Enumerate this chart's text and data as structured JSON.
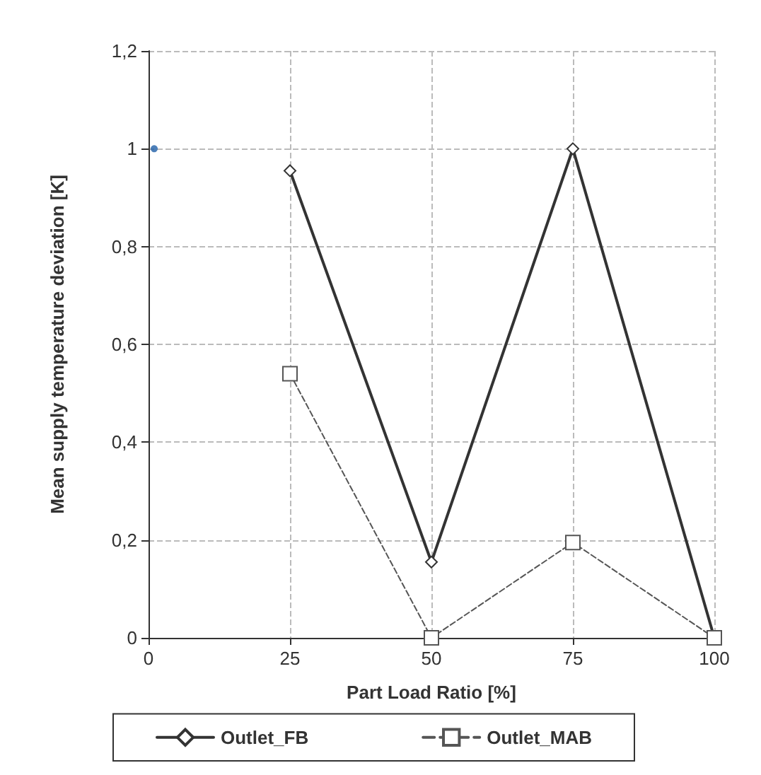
{
  "chart_data": {
    "type": "line",
    "xlabel": "Part Load Ratio [%]",
    "ylabel": "Mean supply temperature deviation [K]",
    "xlim": [
      0,
      100
    ],
    "xticks": [
      0,
      25,
      50,
      75,
      100
    ],
    "ylim": [
      0,
      1.2
    ],
    "yticks": [
      0,
      {
        "value": 0.2,
        "label": "0,2"
      },
      {
        "value": 0.4,
        "label": "0,4"
      },
      {
        "value": 0.6,
        "label": "0,6"
      },
      {
        "value": 0.8,
        "label": "0,8"
      },
      1,
      {
        "value": 1.2,
        "label": "1,2"
      }
    ],
    "grid": true,
    "legend": "bottom",
    "series": [
      {
        "name": "Outlet_FB",
        "color": "#333333",
        "x": [
          25,
          50,
          75,
          100
        ],
        "values": [
          0.955,
          0.155,
          1.0,
          0
        ],
        "marker": "diamond",
        "line_style": "solid"
      },
      {
        "name": "Outlet_MAB",
        "color": "#555555",
        "x": [
          25,
          50,
          75,
          100
        ],
        "values": [
          0.54,
          0,
          0.195,
          0
        ],
        "marker": "square",
        "line_style": "dashed"
      },
      {
        "type": "scatter",
        "color": "#1f5fa8",
        "x": [
          1
        ],
        "values": [
          1
        ],
        "marker": "circle"
      }
    ]
  }
}
